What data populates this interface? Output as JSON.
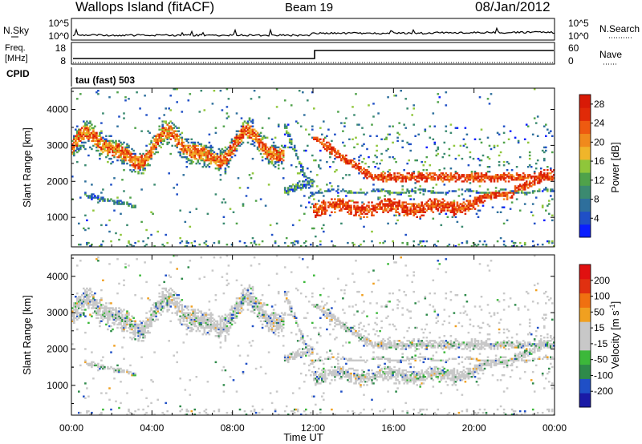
{
  "header": {
    "station": "Wallops Island (fitACF)",
    "beam": "Beam 19",
    "date": "08/Jan/2012"
  },
  "strip_noise": {
    "left_label": "N.Sky",
    "right_label": "N.Search",
    "left_ticks": [
      "10^5",
      "10^0"
    ],
    "right_ticks": [
      "10^5",
      "10^0"
    ]
  },
  "strip_freq": {
    "left_label_1": "Freq.",
    "left_label_2": "[MHz]",
    "left_ticks": [
      "18",
      "8"
    ],
    "right_label": "Nave",
    "right_ticks": [
      "60",
      "0"
    ]
  },
  "strip_cpid": {
    "left_label": "CPID",
    "program_text": "tau (fast) 503"
  },
  "colors": {
    "power_scale": [
      "#0a1eff",
      "#1f4fc6",
      "#2e6f9c",
      "#3b8a70",
      "#4fa24a",
      "#8fc63a",
      "#f0b52a",
      "#f08a1c",
      "#ee5a10",
      "#e02a08",
      "#d81a06"
    ],
    "velocity_scale": [
      "#1a1aa6",
      "#1f4fc6",
      "#2e8a4a",
      "#3cb83a",
      "#c8c8c8",
      "#c8c8c8",
      "#f0a020",
      "#f07010",
      "#e03010",
      "#e01010"
    ]
  },
  "chart_data": [
    {
      "type": "heatmap",
      "title": "Power",
      "ylabel": "Slant Range [km]",
      "ylim": [
        180,
        4590
      ],
      "yticks": [
        "4000",
        "3000",
        "2000",
        "1000"
      ],
      "colorbar_label": "Power [dB]",
      "colorbar_ticks": [
        "28",
        "24",
        "20",
        "16",
        "12",
        "8",
        "4"
      ],
      "color_range": [
        0,
        30
      ]
    },
    {
      "type": "heatmap",
      "title": "Velocity",
      "ylabel": "Slant Range [km]",
      "ylim": [
        180,
        4590
      ],
      "yticks": [
        "4000",
        "3000",
        "2000",
        "1000"
      ],
      "colorbar_label": "Velocity [m s^-1]",
      "colorbar_ticks": [
        "200",
        "100",
        "50",
        "15",
        "-15",
        "-50",
        "-100",
        "-200"
      ],
      "color_range": [
        -250,
        250
      ]
    }
  ],
  "x_axis": {
    "label": "Time UT",
    "ticks": [
      "00:00",
      "04:00",
      "08:00",
      "12:00",
      "16:00",
      "20:00",
      "00:00"
    ],
    "range_hours": [
      0,
      24
    ]
  }
}
